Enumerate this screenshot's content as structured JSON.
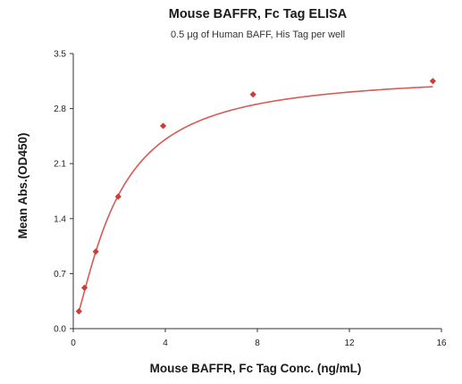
{
  "chart_data": {
    "type": "scatter",
    "title": "Mouse BAFFR, Fc Tag ELISA",
    "subtitle": "0.5 μg of Human BAFF, His Tag per well",
    "xlabel": "Mouse BAFFR, Fc Tag Conc. (ng/mL)",
    "ylabel": "Mean Abs.(OD450)",
    "xlim": [
      0,
      16
    ],
    "ylim": [
      0,
      3.5
    ],
    "xticks": [
      "0",
      "4",
      "8",
      "12",
      "16"
    ],
    "yticks": [
      "0.0",
      "0.7",
      "1.4",
      "2.1",
      "2.8",
      "3.5"
    ],
    "grid": false,
    "series": [
      {
        "x": [
          0.244,
          0.488,
          0.977,
          1.953,
          3.906,
          7.813,
          15.625
        ],
        "y": [
          0.22,
          0.52,
          0.98,
          1.68,
          2.58,
          2.98,
          3.15
        ]
      }
    ],
    "fit_curve": {
      "type": "4PL",
      "bottom": 0.02,
      "top": 3.25,
      "ec50": 1.85,
      "hill": 1.35
    },
    "colors": {
      "marker": "#d23a35",
      "curve": "#d85a55",
      "axis": "#333333"
    }
  }
}
